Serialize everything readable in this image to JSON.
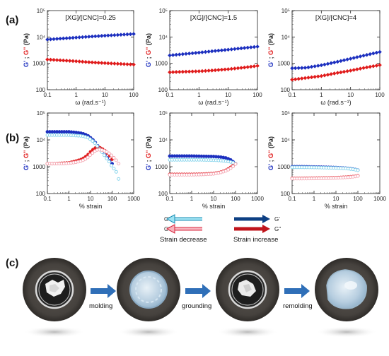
{
  "panel_a": {
    "letter": "(a)",
    "xlabel": "ω (rad.s⁻¹)",
    "ylabel_gp": "G'",
    "ylabel_sep": " ; ",
    "ylabel_gpp": "G\"",
    "ylabel_unit": " (Pa)"
  },
  "panel_b": {
    "letter": "(b)",
    "xlabel": "% strain",
    "ylabel_gp": "G'",
    "ylabel_sep": " ; ",
    "ylabel_gpp": "G\"",
    "ylabel_unit": " (Pa)"
  },
  "panel_c": {
    "letter": "(c)",
    "steps": [
      "molding",
      "grounding",
      "remolding"
    ]
  },
  "legend": {
    "decrease_gp": "G'",
    "decrease_gpp": "G''",
    "decrease_caption": "Strain decrease",
    "increase_gp": "G'",
    "increase_gpp": "G''",
    "increase_caption": "Strain increase"
  },
  "colors": {
    "gp_increase": "#1c2fbf",
    "gpp_increase": "#e01b1b",
    "gp_decrease": "#7fd1ea",
    "gpp_decrease": "#f4a4b0",
    "arrow_blue": "#2f6fb8"
  },
  "chart_data": [
    {
      "id": "a1",
      "type": "scatter",
      "title": "[XG]/[CNC]=0.25",
      "xscale": "log",
      "yscale": "log",
      "xlim": [
        0.1,
        100
      ],
      "ylim": [
        100,
        100000
      ],
      "xticks": [
        "0.1",
        "1",
        "10",
        "100"
      ],
      "yticks": [
        "100",
        "1000",
        "10⁴",
        "10⁵"
      ],
      "series": [
        {
          "name": "G'",
          "x": [
            0.1,
            0.3,
            1,
            3,
            10,
            30,
            100
          ],
          "y": [
            8000,
            8700,
            9500,
            10300,
            11200,
            12000,
            13000
          ]
        },
        {
          "name": "G\"",
          "x": [
            0.1,
            0.3,
            1,
            3,
            10,
            30,
            100
          ],
          "y": [
            1400,
            1300,
            1200,
            1100,
            1020,
            960,
            900
          ]
        }
      ]
    },
    {
      "id": "a2",
      "type": "scatter",
      "title": "[XG]/[CNC]=1.5",
      "xscale": "log",
      "yscale": "log",
      "xlim": [
        0.1,
        100
      ],
      "ylim": [
        100,
        100000
      ],
      "xticks": [
        "0.1",
        "1",
        "10",
        "100"
      ],
      "yticks": [
        "100",
        "1000",
        "10⁴",
        "10⁵"
      ],
      "series": [
        {
          "name": "G'",
          "x": [
            0.1,
            0.3,
            1,
            3,
            10,
            30,
            100
          ],
          "y": [
            2000,
            2250,
            2550,
            2900,
            3300,
            3750,
            4300
          ]
        },
        {
          "name": "G\"",
          "x": [
            0.1,
            0.3,
            1,
            3,
            10,
            30,
            100
          ],
          "y": [
            460,
            480,
            500,
            540,
            600,
            680,
            800
          ]
        }
      ]
    },
    {
      "id": "a3",
      "type": "scatter",
      "title": "[XG]/[CNC]=4",
      "xscale": "log",
      "yscale": "log",
      "xlim": [
        0.1,
        100
      ],
      "ylim": [
        100,
        100000
      ],
      "xticks": [
        "0.1",
        "1",
        "10",
        "100"
      ],
      "yticks": [
        "100",
        "1000",
        "10⁴",
        "10⁵"
      ],
      "series": [
        {
          "name": "G'",
          "x": [
            0.1,
            0.3,
            1,
            3,
            10,
            30,
            100
          ],
          "y": [
            650,
            680,
            850,
            1100,
            1500,
            2000,
            2700
          ]
        },
        {
          "name": "G\"",
          "x": [
            0.1,
            0.3,
            1,
            3,
            10,
            30,
            100
          ],
          "y": [
            240,
            280,
            330,
            420,
            530,
            680,
            860
          ]
        }
      ]
    },
    {
      "id": "b1",
      "type": "scatter",
      "title": "",
      "xscale": "log",
      "yscale": "log",
      "xlim": [
        0.1,
        1000
      ],
      "ylim": [
        100,
        100000
      ],
      "xticks": [
        "0.1",
        "1",
        "10",
        "100",
        "1000"
      ],
      "yticks": [
        "100",
        "1000",
        "10⁴",
        "10⁵"
      ],
      "series": [
        {
          "name": "G' strain increase",
          "x": [
            0.1,
            0.2,
            0.5,
            1,
            2,
            4,
            7,
            10,
            15,
            20,
            30,
            50,
            80,
            100
          ],
          "y": [
            20000,
            20000,
            20000,
            20000,
            19000,
            17500,
            15000,
            12000,
            9000,
            6500,
            4200,
            2500,
            1600,
            1300
          ]
        },
        {
          "name": "G'' strain increase",
          "x": [
            0.1,
            0.2,
            0.5,
            1,
            2,
            4,
            7,
            10,
            15,
            20,
            30,
            50,
            80,
            100
          ],
          "y": [
            1300,
            1300,
            1350,
            1400,
            1600,
            1900,
            2600,
            3600,
            4800,
            5300,
            5000,
            3800,
            2500,
            1900
          ]
        },
        {
          "name": "G' strain decrease",
          "x": [
            0.1,
            0.2,
            0.5,
            1,
            2,
            4,
            7,
            10,
            15,
            20,
            30,
            50,
            80,
            100,
            150,
            200
          ],
          "y": [
            15000,
            15000,
            15000,
            15000,
            14500,
            14000,
            12500,
            10500,
            8000,
            6000,
            4000,
            2300,
            1400,
            1000,
            700,
            350
          ]
        },
        {
          "name": "G'' strain decrease",
          "x": [
            0.1,
            0.2,
            0.5,
            1,
            2,
            4,
            7,
            10,
            15,
            20,
            30,
            50,
            80,
            100,
            150,
            200
          ],
          "y": [
            1300,
            1300,
            1300,
            1350,
            1450,
            1650,
            2100,
            2800,
            3700,
            4200,
            4300,
            3800,
            3000,
            2500,
            1800,
            1300
          ]
        }
      ]
    },
    {
      "id": "b2",
      "type": "scatter",
      "title": "",
      "xscale": "log",
      "yscale": "log",
      "xlim": [
        0.1,
        1000
      ],
      "ylim": [
        100,
        100000
      ],
      "xticks": [
        "0.1",
        "1",
        "10",
        "100",
        "1000"
      ],
      "yticks": [
        "100",
        "1000",
        "10⁴",
        "10⁵"
      ],
      "series": [
        {
          "name": "G' strain increase",
          "x": [
            0.1,
            0.3,
            1,
            3,
            10,
            20,
            40,
            60,
            80,
            100
          ],
          "y": [
            2500,
            2500,
            2500,
            2450,
            2400,
            2300,
            2100,
            1800,
            1500,
            1300
          ]
        },
        {
          "name": "G'' strain increase",
          "x": [
            0.1,
            0.3,
            1,
            3,
            10,
            20,
            40,
            60,
            80,
            100
          ],
          "y": [
            520,
            520,
            520,
            530,
            560,
            620,
            760,
            950,
            1150,
            1300
          ]
        },
        {
          "name": "G' strain decrease",
          "x": [
            0.1,
            0.3,
            1,
            3,
            10,
            20,
            40,
            60,
            80,
            100
          ],
          "y": [
            1800,
            1800,
            1800,
            1800,
            1750,
            1700,
            1600,
            1500,
            1400,
            1300
          ]
        },
        {
          "name": "G'' strain decrease",
          "x": [
            0.1,
            0.3,
            1,
            3,
            10,
            20,
            40,
            60,
            80,
            100
          ],
          "y": [
            500,
            500,
            500,
            510,
            540,
            600,
            720,
            880,
            1050,
            1250
          ]
        }
      ]
    },
    {
      "id": "b3",
      "type": "scatter",
      "title": "",
      "xscale": "log",
      "yscale": "log",
      "xlim": [
        0.1,
        1000
      ],
      "ylim": [
        100,
        100000
      ],
      "xticks": [
        "0.1",
        "1",
        "10",
        "100",
        "1000"
      ],
      "yticks": [
        "100",
        "1000",
        "10⁴",
        "10⁵"
      ],
      "series": [
        {
          "name": "G' strain increase",
          "x": [
            0.1,
            0.3,
            1,
            3,
            10,
            30,
            60,
            100
          ],
          "y": [
            1000,
            1000,
            980,
            960,
            930,
            880,
            820,
            750
          ]
        },
        {
          "name": "G'' strain increase",
          "x": [
            0.1,
            0.3,
            1,
            3,
            10,
            30,
            60,
            100
          ],
          "y": [
            370,
            370,
            375,
            380,
            390,
            410,
            430,
            460
          ]
        },
        {
          "name": "G' strain decrease",
          "x": [
            0.1,
            0.3,
            1,
            3,
            10,
            30,
            60,
            100
          ],
          "y": [
            950,
            950,
            940,
            920,
            900,
            860,
            800,
            740
          ]
        },
        {
          "name": "G'' strain decrease",
          "x": [
            0.1,
            0.3,
            1,
            3,
            10,
            30,
            60,
            100
          ],
          "y": [
            360,
            360,
            365,
            370,
            380,
            400,
            420,
            450
          ]
        }
      ]
    }
  ]
}
